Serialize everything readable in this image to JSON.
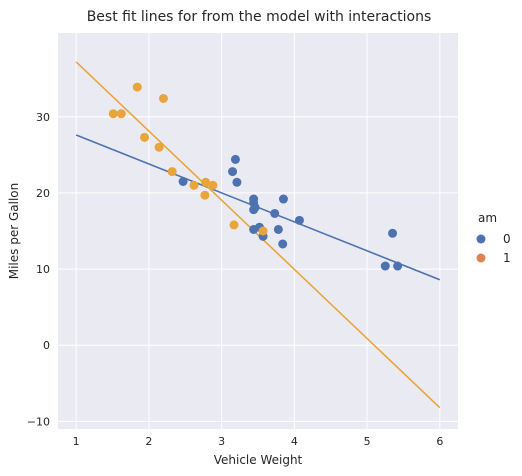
{
  "chart_data": {
    "type": "scatter",
    "title": "Best fit lines for from the model with interactions",
    "xlabel": "Vehicle Weight",
    "ylabel": "Miles per Gallon",
    "xlim": [
      0.75,
      6.25
    ],
    "ylim": [
      -11,
      41
    ],
    "xticks": [
      1,
      2,
      3,
      4,
      5,
      6
    ],
    "yticks": [
      -10,
      0,
      10,
      20,
      30
    ],
    "grid": true,
    "legend": {
      "title": "am",
      "placement": "right",
      "entries": [
        {
          "label": "0",
          "color": "#4c72b0"
        },
        {
          "label": "1",
          "color": "#dd8452"
        }
      ]
    },
    "series": [
      {
        "name": "0",
        "color": "#4c72b0",
        "points": [
          [
            3.21,
            21.4
          ],
          [
            3.44,
            18.7
          ],
          [
            3.46,
            18.1
          ],
          [
            3.57,
            14.3
          ],
          [
            3.19,
            24.4
          ],
          [
            3.15,
            22.8
          ],
          [
            3.44,
            19.2
          ],
          [
            3.44,
            17.8
          ],
          [
            4.07,
            16.4
          ],
          [
            3.73,
            17.3
          ],
          [
            3.78,
            15.2
          ],
          [
            5.25,
            10.4
          ],
          [
            5.42,
            10.4
          ],
          [
            5.35,
            14.7
          ],
          [
            2.47,
            21.5
          ],
          [
            3.52,
            15.5
          ],
          [
            3.44,
            15.2
          ],
          [
            3.84,
            13.3
          ],
          [
            3.85,
            19.2
          ]
        ],
        "fit_line": {
          "x": [
            1,
            6
          ],
          "y": [
            27.6,
            8.6
          ]
        }
      },
      {
        "name": "1",
        "color": "#e8a53a",
        "points": [
          [
            2.62,
            21.0
          ],
          [
            2.88,
            21.0
          ],
          [
            2.32,
            22.8
          ],
          [
            2.2,
            32.4
          ],
          [
            1.62,
            30.4
          ],
          [
            1.84,
            33.9
          ],
          [
            1.94,
            27.3
          ],
          [
            2.14,
            26.0
          ],
          [
            1.51,
            30.4
          ],
          [
            3.17,
            15.8
          ],
          [
            2.77,
            19.7
          ],
          [
            2.78,
            21.4
          ],
          [
            3.57,
            15.0
          ]
        ],
        "fit_line": {
          "x": [
            1,
            6
          ],
          "y": [
            37.2,
            -8.2
          ]
        }
      }
    ]
  }
}
